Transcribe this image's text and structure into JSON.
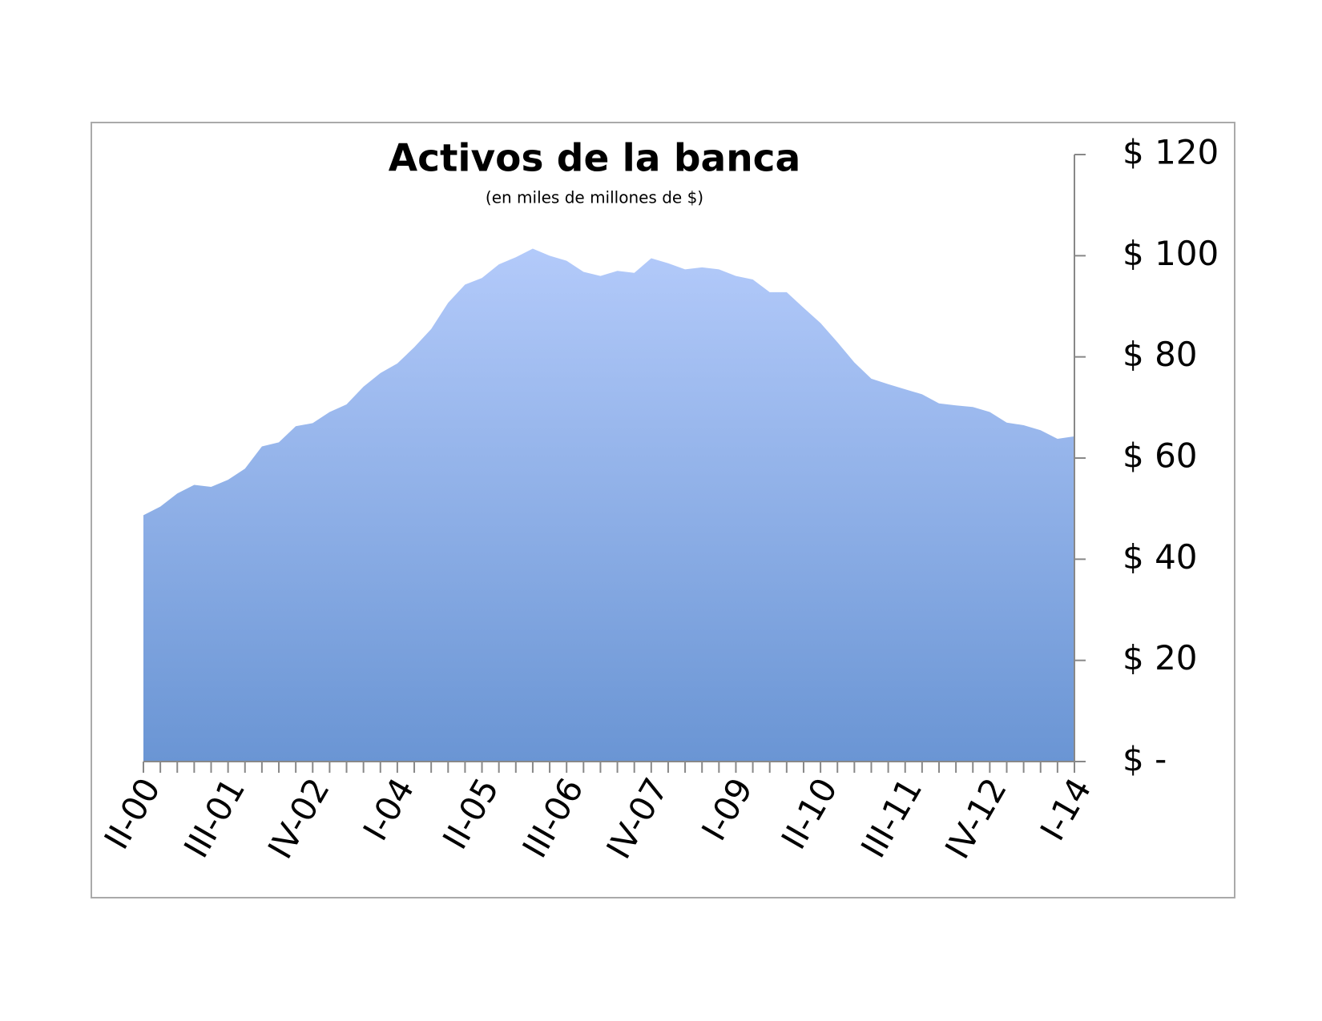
{
  "chart_data": {
    "type": "area",
    "title": "Activos de la banca",
    "subtitle": "(en miles de millones de $)",
    "categories": [
      "II-00",
      null,
      null,
      null,
      null,
      "III-01",
      null,
      null,
      null,
      null,
      "IV-02",
      null,
      null,
      null,
      null,
      "I-04",
      null,
      null,
      null,
      null,
      "II-05",
      null,
      null,
      null,
      null,
      "III-06",
      null,
      null,
      null,
      null,
      "IV-07",
      null,
      null,
      null,
      null,
      "I-09",
      null,
      null,
      null,
      null,
      "II-10",
      null,
      null,
      null,
      null,
      "III-11",
      null,
      null,
      null,
      null,
      "IV-12",
      null,
      null,
      null,
      null,
      "I-14"
    ],
    "values": [
      48.7,
      50.4,
      53,
      54.7,
      54.3,
      55.7,
      57.9,
      62.3,
      63.1,
      66.3,
      66.9,
      69.1,
      70.6,
      74.1,
      76.8,
      78.7,
      81.9,
      85.5,
      90.7,
      94.3,
      95.6,
      98.3,
      99.7,
      101.4,
      100,
      99,
      96.8,
      96,
      97,
      96.6,
      99.5,
      98.5,
      97.3,
      97.7,
      97.3,
      96,
      95.3,
      92.8,
      92.8,
      89.7,
      86.7,
      82.9,
      78.9,
      75.7,
      74.6,
      73.6,
      72.6,
      70.8,
      70.4,
      70.1,
      69.1,
      67,
      66.5,
      65.5,
      63.8,
      64.3
    ],
    "color": [
      "#b3cafa",
      "#6a95d4"
    ],
    "ylim": [
      0,
      120
    ],
    "yticks": [
      {
        "value": 0,
        "label": "$ -"
      },
      {
        "value": 20,
        "label": "$ 20"
      },
      {
        "value": 40,
        "label": "$ 40"
      },
      {
        "value": 60,
        "label": "$ 60"
      },
      {
        "value": 80,
        "label": "$ 80"
      },
      {
        "value": 100,
        "label": "$ 100"
      },
      {
        "value": 120,
        "label": "$ 120"
      }
    ],
    "y_axis_side": "right"
  }
}
